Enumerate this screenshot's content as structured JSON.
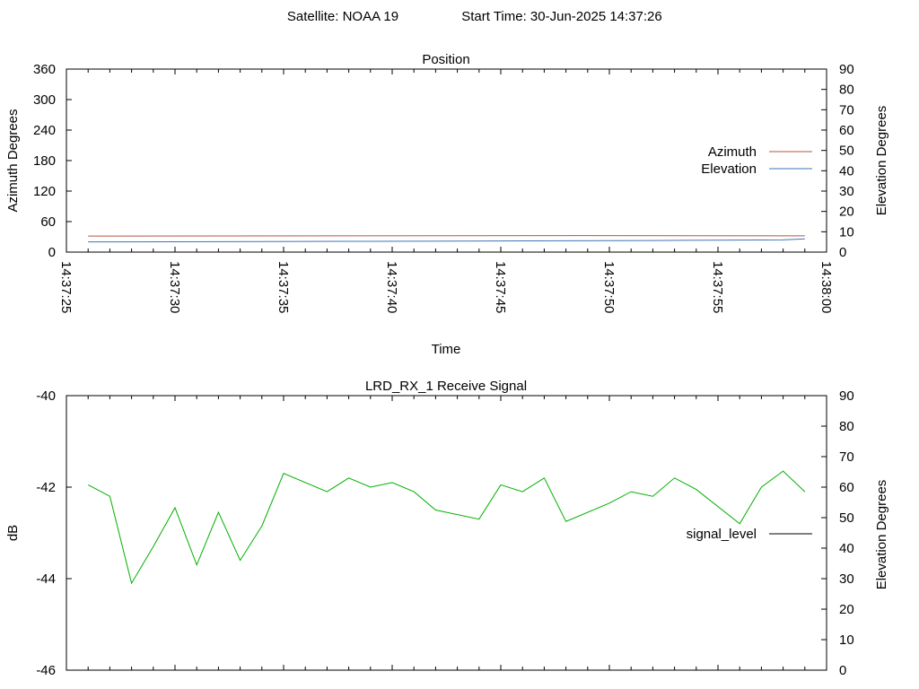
{
  "header": {
    "satellite": "Satellite: NOAA 19",
    "start_time": "Start Time: 30-Jun-2025 14:37:26"
  },
  "chart_data": [
    {
      "type": "line",
      "title": "Position",
      "xlabel": "Time",
      "ylabel": "Azimuth Degrees",
      "y2label": "Elevation Degrees",
      "xlim": [
        "14:37:25",
        "14:38:00"
      ],
      "ylim": [
        0,
        360
      ],
      "y2lim": [
        0,
        90
      ],
      "yticks": [
        "0",
        "60",
        "120",
        "180",
        "240",
        "300",
        "360"
      ],
      "y2ticks": [
        "0",
        "10",
        "20",
        "30",
        "40",
        "50",
        "60",
        "70",
        "80",
        "90"
      ],
      "xticks": [
        "14:37:25",
        "14:37:30",
        "14:37:35",
        "14:37:40",
        "14:37:45",
        "14:37:50",
        "14:37:55",
        "14:38:00"
      ],
      "legend": "right",
      "series": [
        {
          "name": "Azimuth",
          "color": "#b4533a",
          "axis": "y",
          "x": [
            "14:37:26",
            "14:37:49",
            "14:37:59"
          ],
          "values": [
            31.5,
            32.5,
            32
          ]
        },
        {
          "name": "Elevation",
          "color": "#3b73b9",
          "axis": "y2",
          "x": [
            "14:37:26",
            "14:37:39",
            "14:37:46",
            "14:37:52",
            "14:37:58",
            "14:37:59"
          ],
          "values": [
            5,
            5.3,
            5.5,
            5.7,
            6,
            6.5
          ]
        }
      ]
    },
    {
      "type": "line",
      "title": "LRD_RX_1 Receive Signal",
      "ylabel": "dB",
      "y2label": "Elevation Degrees",
      "ylim": [
        -46,
        -40
      ],
      "y2lim": [
        0,
        90
      ],
      "yticks": [
        "-46",
        "-44",
        "-42",
        "-40"
      ],
      "y2ticks": [
        "0",
        "10",
        "20",
        "30",
        "40",
        "50",
        "60",
        "70",
        "80",
        "90"
      ],
      "legend": "right",
      "series": [
        {
          "name": "signal_level",
          "legend_color": "#000000",
          "color": "#00b000",
          "x": [
            "14:37:26",
            "14:37:27",
            "14:37:28",
            "14:37:29",
            "14:37:30",
            "14:37:31",
            "14:37:32",
            "14:37:33",
            "14:37:34",
            "14:37:35",
            "14:37:37",
            "14:37:38",
            "14:37:39",
            "14:37:40",
            "14:37:41",
            "14:37:42",
            "14:37:44",
            "14:37:45",
            "14:37:46",
            "14:37:47",
            "14:37:48",
            "14:37:50",
            "14:37:51",
            "14:37:52",
            "14:37:53",
            "14:37:54",
            "14:37:56",
            "14:37:57",
            "14:37:58",
            "14:37:59"
          ],
          "values": [
            -41.95,
            -42.2,
            -44.1,
            -43.3,
            -42.45,
            -43.7,
            -42.55,
            -43.6,
            -42.85,
            -41.7,
            -42.1,
            -41.8,
            -42.0,
            -41.9,
            -42.1,
            -42.5,
            -42.7,
            -41.95,
            -42.1,
            -41.8,
            -42.75,
            -42.35,
            -42.1,
            -42.2,
            -41.8,
            -42.05,
            -42.8,
            -42.0,
            -41.65,
            -42.1
          ]
        }
      ]
    }
  ]
}
